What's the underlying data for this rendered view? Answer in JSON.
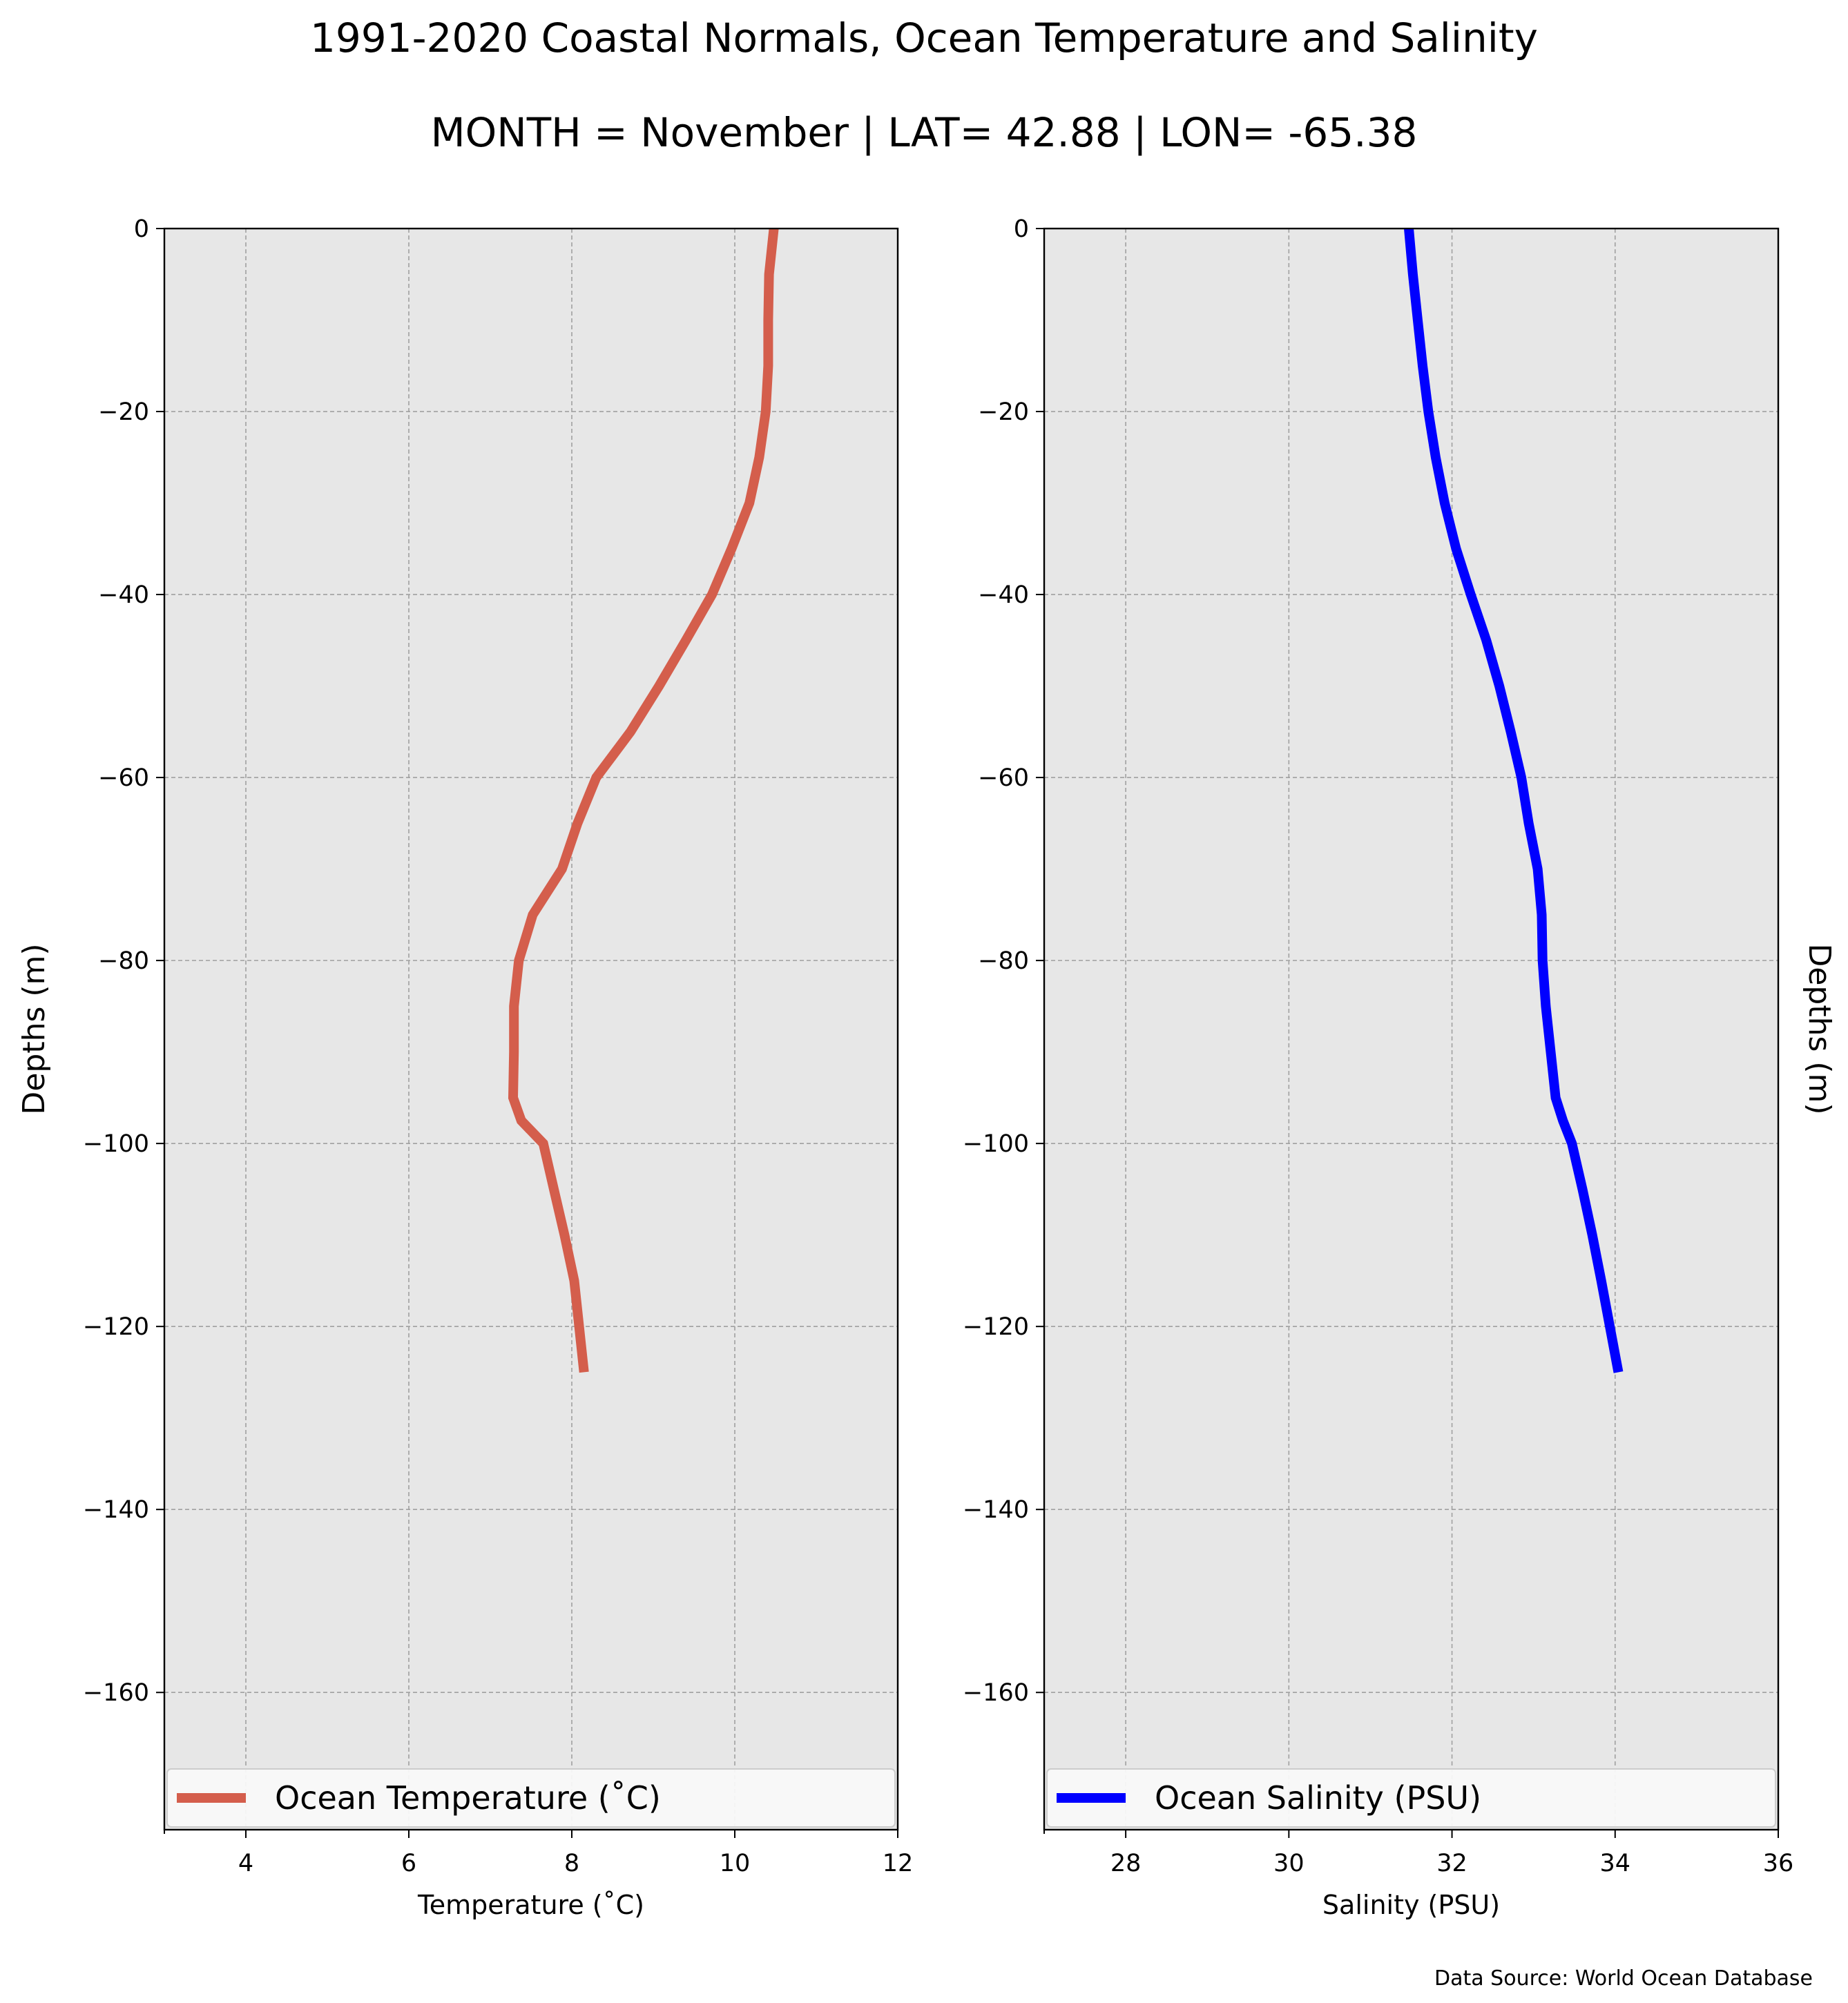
{
  "header": {
    "title": "1991-2020 Coastal Normals, Ocean Temperature and Salinity",
    "subtitle": "MONTH = November | LAT= 42.88 | LON= -65.38"
  },
  "footer": {
    "source": "Data Source: World Ocean Database"
  },
  "chart_data": [
    {
      "type": "line",
      "xlabel": "Temperature ($^\\circ$C)",
      "xlabel_display": "Temperature (˚C)",
      "ylabel": "Depths (m)",
      "xlim": [
        3,
        12
      ],
      "ylim": [
        -175,
        0
      ],
      "xticks": [
        4,
        6,
        8,
        10,
        12
      ],
      "yticks": [
        0,
        -20,
        -40,
        -60,
        -80,
        -100,
        -120,
        -140,
        -160
      ],
      "ytick_labels": [
        "0",
        "−20",
        "−40",
        "−60",
        "−80",
        "−100",
        "−120",
        "−140",
        "−160"
      ],
      "grid": true,
      "legend_position": "lower-center",
      "ylabel_side": "left",
      "background": "#e7e7e7",
      "series": [
        {
          "name": "Ocean Temperature (˚C)",
          "color": "#d45e4c",
          "x": [
            10.48,
            10.42,
            10.41,
            10.41,
            10.38,
            10.3,
            10.18,
            9.96,
            9.72,
            9.4,
            9.07,
            8.72,
            8.3,
            8.07,
            7.88,
            7.52,
            7.35,
            7.29,
            7.29,
            7.28,
            7.38,
            7.65,
            7.78,
            7.91,
            8.03,
            8.15
          ],
          "y": [
            0,
            -5,
            -10,
            -15,
            -20,
            -25,
            -30,
            -35,
            -40,
            -45,
            -50,
            -55,
            -60,
            -65,
            -70,
            -75,
            -80,
            -85,
            -90,
            -95,
            -97.5,
            -100,
            -105,
            -110,
            -115,
            -125
          ]
        }
      ]
    },
    {
      "type": "line",
      "xlabel": "Salinity (PSU)",
      "ylabel": "Depths (m)",
      "xlim": [
        27,
        36
      ],
      "ylim": [
        -175,
        0
      ],
      "xticks": [
        28,
        30,
        32,
        34,
        36
      ],
      "yticks": [
        0,
        -20,
        -40,
        -60,
        -80,
        -100,
        -120,
        -140,
        -160
      ],
      "ytick_labels": [
        "0",
        "−20",
        "−40",
        "−60",
        "−80",
        "−100",
        "−120",
        "−140",
        "−160"
      ],
      "grid": true,
      "legend_position": "lower-center",
      "ylabel_side": "right",
      "background": "#e7e7e7",
      "series": [
        {
          "name": "Ocean Salinity (PSU)",
          "color": "#0000ff",
          "x": [
            31.47,
            31.52,
            31.58,
            31.64,
            31.71,
            31.8,
            31.91,
            32.05,
            32.23,
            32.42,
            32.58,
            32.72,
            32.85,
            32.94,
            33.05,
            33.1,
            33.11,
            33.15,
            33.21,
            33.27,
            33.36,
            33.47,
            33.6,
            33.72,
            33.83,
            34.04
          ],
          "y": [
            0,
            -5,
            -10,
            -15,
            -20,
            -25,
            -30,
            -35,
            -40,
            -45,
            -50,
            -55,
            -60,
            -65,
            -70,
            -75,
            -80,
            -85,
            -90,
            -95,
            -97.5,
            -100,
            -105,
            -110,
            -115,
            -125
          ]
        }
      ]
    }
  ]
}
